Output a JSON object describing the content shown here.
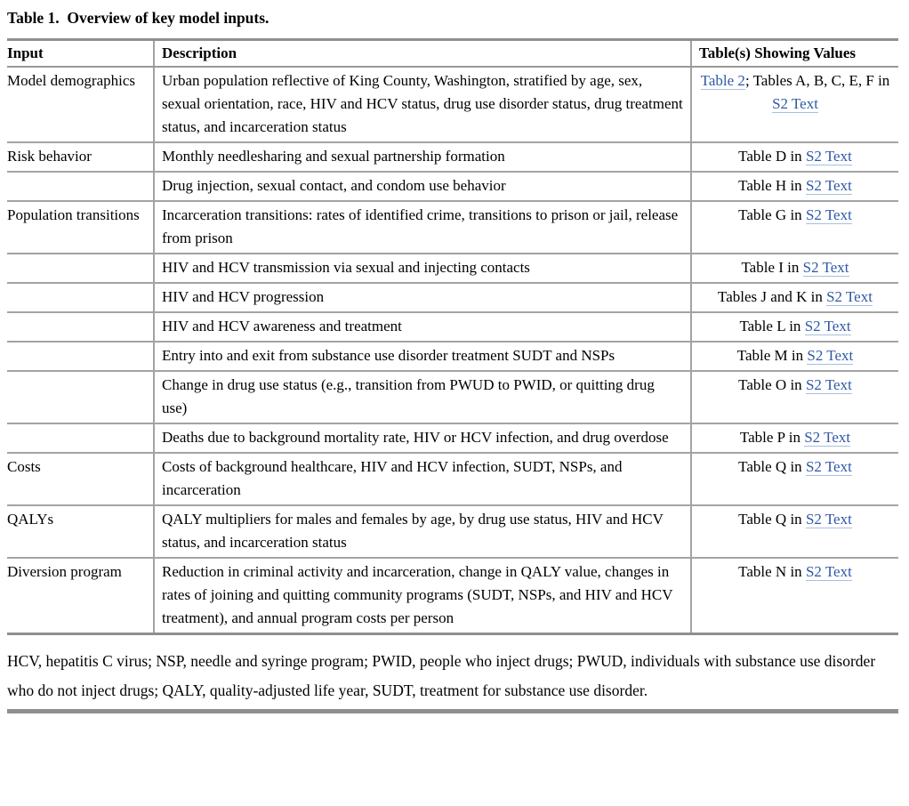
{
  "title": "Table 1.  Overview of key model inputs.",
  "link_color": "#3058a7",
  "rule_color": "#8f8f8f",
  "table": {
    "headers": [
      "Input",
      "Description",
      "Table(s) Showing Values"
    ],
    "rows": [
      {
        "input": "Model demographics",
        "description": "Urban population reflective of King County, Washington, stratified by age, sex, sexual orientation, race, HIV and HCV status, drug use disorder status, drug treatment status, and incarceration status",
        "tables": [
          {
            "text": "Table 2",
            "link": true
          },
          {
            "text": "; Tables A, B, C, E, F in ",
            "link": false
          },
          {
            "text": "S2 Text",
            "link": true
          }
        ]
      },
      {
        "input": "Risk behavior",
        "description": "Monthly needlesharing and sexual partnership formation",
        "tables": [
          {
            "text": "Table D in ",
            "link": false
          },
          {
            "text": "S2 Text",
            "link": true
          }
        ]
      },
      {
        "input": "",
        "description": "Drug injection, sexual contact, and condom use behavior",
        "tables": [
          {
            "text": "Table H in ",
            "link": false
          },
          {
            "text": "S2 Text",
            "link": true
          }
        ]
      },
      {
        "input": "Population transitions",
        "description": "Incarceration transitions: rates of identified crime, transitions to prison or jail, release from prison",
        "tables": [
          {
            "text": "Table G in ",
            "link": false
          },
          {
            "text": "S2 Text",
            "link": true
          }
        ]
      },
      {
        "input": "",
        "description": "HIV and HCV transmission via sexual and injecting contacts",
        "tables": [
          {
            "text": "Table I in ",
            "link": false
          },
          {
            "text": "S2 Text",
            "link": true
          }
        ]
      },
      {
        "input": "",
        "description": "HIV and HCV progression",
        "tables": [
          {
            "text": "Tables J and K in ",
            "link": false
          },
          {
            "text": "S2 Text",
            "link": true
          }
        ]
      },
      {
        "input": "",
        "description": "HIV and HCV awareness and treatment",
        "tables": [
          {
            "text": "Table L in ",
            "link": false
          },
          {
            "text": "S2 Text",
            "link": true
          }
        ]
      },
      {
        "input": "",
        "description": "Entry into and exit from substance use disorder treatment SUDT and NSPs",
        "tables": [
          {
            "text": "Table M in ",
            "link": false
          },
          {
            "text": "S2 Text",
            "link": true
          }
        ]
      },
      {
        "input": "",
        "description": "Change in drug use status (e.g., transition from PWUD to PWID, or quitting drug use)",
        "tables": [
          {
            "text": "Table O in ",
            "link": false
          },
          {
            "text": "S2 Text",
            "link": true
          }
        ]
      },
      {
        "input": "",
        "description": "Deaths due to background mortality rate, HIV or HCV infection, and drug overdose",
        "tables": [
          {
            "text": "Table P in ",
            "link": false
          },
          {
            "text": "S2 Text",
            "link": true
          }
        ]
      },
      {
        "input": "Costs",
        "description": "Costs of background healthcare, HIV and HCV infection, SUDT, NSPs, and incarceration",
        "tables": [
          {
            "text": "Table Q in ",
            "link": false
          },
          {
            "text": "S2 Text",
            "link": true
          }
        ]
      },
      {
        "input": "QALYs",
        "description": "QALY multipliers for males and females by age, by drug use status, HIV and HCV status, and incarceration status",
        "tables": [
          {
            "text": "Table Q in ",
            "link": false
          },
          {
            "text": "S2 Text",
            "link": true
          }
        ]
      },
      {
        "input": "Diversion program",
        "description": "Reduction in criminal activity and incarceration, change in QALY value, changes in rates of joining and quitting community programs (SUDT, NSPs, and HIV and HCV treatment), and annual program costs per person",
        "tables": [
          {
            "text": "Table N in ",
            "link": false
          },
          {
            "text": "S2 Text",
            "link": true
          }
        ]
      }
    ]
  },
  "footnote": "HCV, hepatitis C virus; NSP, needle and syringe program; PWID, people who inject drugs; PWUD, individuals with substance use disorder who do not inject drugs; QALY, quality-adjusted life year, SUDT, treatment for substance use disorder."
}
